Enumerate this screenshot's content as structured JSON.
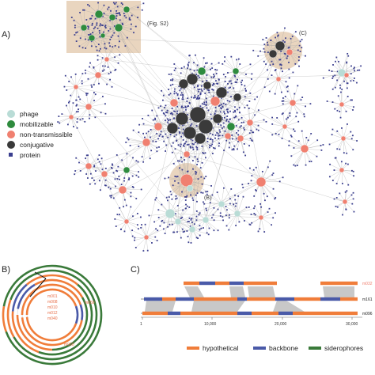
{
  "panels": {
    "a_letter": "A)",
    "b_letter": "B)",
    "c_letter": "C)"
  },
  "network": {
    "fig_s2_label": "(Fig. S2)",
    "callout_b": "(B)",
    "callout_c": "(C)",
    "legend": [
      {
        "label": "phage",
        "color": "#b9dcd6",
        "shape": "circle"
      },
      {
        "label": "mobilizable",
        "color": "#2e8b3e",
        "shape": "circle"
      },
      {
        "label": "non-transmissible",
        "color": "#f08070",
        "shape": "circle"
      },
      {
        "label": "conjugative",
        "color": "#3a3a3a",
        "shape": "circle"
      },
      {
        "label": "protein",
        "color": "#3b3f8f",
        "shape": "square"
      }
    ]
  },
  "panel_b": {
    "inner_labels": [
      "m001",
      "m008",
      "m010",
      "m012",
      "m040"
    ],
    "label_ring2": "m050",
    "label_ring3": "m060"
  },
  "panel_c": {
    "tracks": [
      {
        "label": "m032",
        "color": "#f08070"
      },
      {
        "label": "m161",
        "color": "#222222"
      },
      {
        "label": "m096",
        "color": "#222222"
      }
    ],
    "axis_ticks": [
      "1",
      "10,000",
      "20,000",
      "30,000"
    ],
    "legend": [
      {
        "label": "hypothetical",
        "color": "#f07d3a"
      },
      {
        "label": "backbone",
        "color": "#4a5aa8"
      },
      {
        "label": "siderophores",
        "color": "#3a7a3a"
      }
    ]
  },
  "colors": {
    "phage": "#b9dcd6",
    "mobilizable": "#2e8b3e",
    "non_transmissible": "#f08070",
    "conjugative": "#3a3a3a",
    "protein": "#3b3f8f",
    "highlight": "#e9d5bf"
  }
}
